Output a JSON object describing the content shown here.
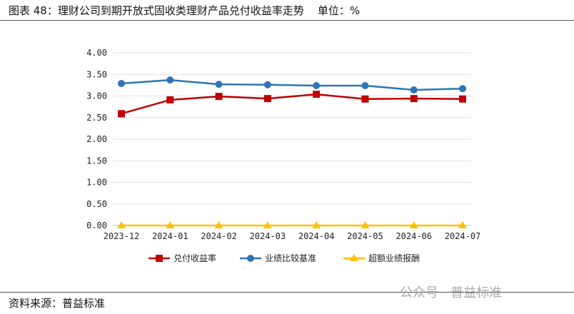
{
  "title": "图表 48：理财公司到期开放式固收类理财产品兑付收益率走势    单位：%",
  "source": "资料来源：普益标准",
  "watermark": "公众号 · 普益标准",
  "chart_data": {
    "type": "line",
    "categories": [
      "2023-12",
      "2024-01",
      "2024-02",
      "2024-03",
      "2024-04",
      "2024-05",
      "2024-06",
      "2024-07"
    ],
    "ylim": [
      0,
      4
    ],
    "yticks": [
      "0.00",
      "0.50",
      "1.00",
      "1.50",
      "2.00",
      "2.50",
      "3.00",
      "3.50",
      "4.00"
    ],
    "grid": true,
    "legend_position": "bottom",
    "series": [
      {
        "name": "兑付收益率",
        "color": "#C00000",
        "marker": "square",
        "values": [
          2.59,
          2.91,
          2.99,
          2.94,
          3.04,
          2.93,
          2.94,
          2.93
        ]
      },
      {
        "name": "业绩比较基准",
        "color": "#2E75B6",
        "marker": "circle",
        "values": [
          3.29,
          3.37,
          3.27,
          3.26,
          3.24,
          3.24,
          3.14,
          3.17
        ]
      },
      {
        "name": "超额业绩报酬",
        "color": "#FFC000",
        "marker": "triangle",
        "values": [
          0,
          0,
          0,
          0,
          0,
          0,
          0,
          0
        ]
      }
    ]
  }
}
